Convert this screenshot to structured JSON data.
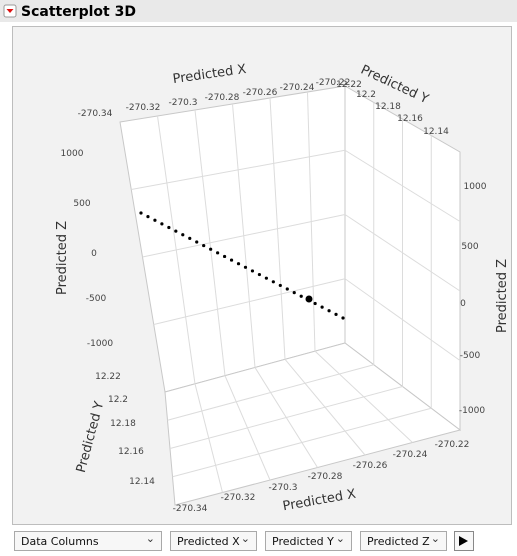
{
  "header": {
    "title": "Scatterplot 3D"
  },
  "axes": [
    {
      "label": "Predicted X",
      "ticks": [
        "-270.34",
        "-270.32",
        "-270.3",
        "-270.28",
        "-270.26",
        "-270.24",
        "-270.22"
      ]
    },
    {
      "label": "Predicted Y",
      "ticks": [
        "12.22",
        "12.2",
        "12.18",
        "12.16",
        "12.14"
      ]
    },
    {
      "label": "Predicted Z",
      "ticks": [
        "1000",
        "500",
        "0",
        "-500",
        "-1000"
      ]
    },
    {
      "label": "Predicted Z",
      "ticks": [
        "1000",
        "500",
        "0",
        "-500",
        "-1000"
      ]
    },
    {
      "label": "Predicted Y",
      "ticks": [
        "12.22",
        "12.2",
        "12.18",
        "12.16",
        "12.14"
      ]
    },
    {
      "label": "Predicted X",
      "ticks": [
        "-270.34",
        "-270.32",
        "-270.3",
        "-270.28",
        "-270.26",
        "-270.24",
        "-270.22"
      ]
    }
  ],
  "controls": [
    "Data Columns",
    "Predicted X",
    "Predicted Y",
    "Predicted Z"
  ]
}
